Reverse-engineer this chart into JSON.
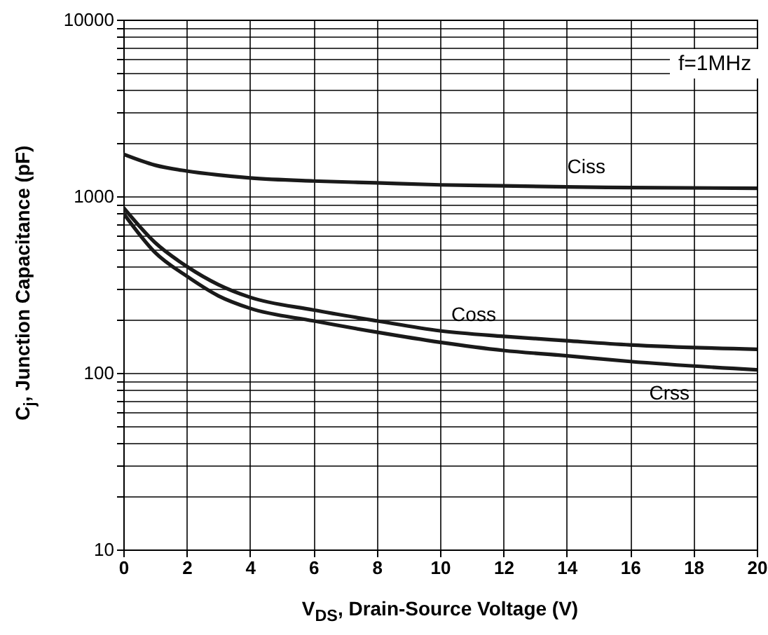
{
  "chart_data": {
    "type": "line",
    "xlabel": "V$_{DS}$, Drain-Source Voltage (V)",
    "ylabel": "C$_{j}$, Junction Capacitance (pF)",
    "annotations": [
      "f=1MHz"
    ],
    "x": [
      0,
      1,
      2,
      3,
      4,
      6,
      8,
      10,
      12,
      14,
      16,
      20
    ],
    "series": [
      {
        "name": "Ciss",
        "color": "#1a1a1a",
        "values": [
          1730,
          1500,
          1390,
          1320,
          1270,
          1220,
          1190,
          1160,
          1145,
          1130,
          1120,
          1110
        ]
      },
      {
        "name": "Coss",
        "color": "#1a1a1a",
        "values": [
          864,
          547,
          401,
          316,
          268,
          227,
          197,
          173,
          161,
          152,
          144,
          136
        ]
      },
      {
        "name": "Crss",
        "color": "#1a1a1a",
        "values": [
          803,
          481,
          353,
          273,
          232,
          197,
          170,
          149,
          134,
          125,
          116,
          104
        ]
      }
    ],
    "log": "y",
    "xlim": [
      0,
      20
    ],
    "xticks": [
      0,
      2,
      4,
      6,
      8,
      10,
      12,
      14,
      16,
      18,
      20
    ],
    "ylim": [
      10,
      10000
    ],
    "yticks": [
      10,
      {
        "value": 20,
        "label": null
      },
      {
        "value": 30,
        "label": null
      },
      {
        "value": 40,
        "label": null
      },
      {
        "value": 50,
        "label": null
      },
      {
        "value": 60,
        "label": null
      },
      {
        "value": 70,
        "label": null
      },
      {
        "value": 80,
        "label": null
      },
      {
        "value": 90,
        "label": null
      },
      100,
      {
        "value": 200,
        "label": null
      },
      {
        "value": 300,
        "label": null
      },
      {
        "value": 400,
        "label": null
      },
      {
        "value": 500,
        "label": null
      },
      {
        "value": 600,
        "label": null
      },
      {
        "value": 700,
        "label": null
      },
      {
        "value": 800,
        "label": null
      },
      {
        "value": 900,
        "label": null
      },
      1000,
      {
        "value": 2000,
        "label": null
      },
      {
        "value": 3000,
        "label": null
      },
      {
        "value": 4000,
        "label": null
      },
      {
        "value": 5000,
        "label": null
      },
      {
        "value": 6000,
        "label": null
      },
      {
        "value": 7000,
        "label": null
      },
      {
        "value": 8000,
        "label": null
      },
      {
        "value": 9000,
        "label": null
      },
      10000
    ],
    "grid": true
  }
}
